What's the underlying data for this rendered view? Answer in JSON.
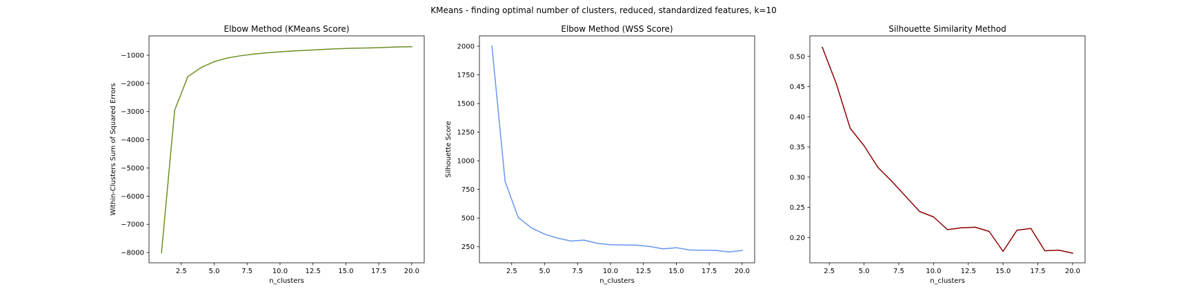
{
  "figure": {
    "suptitle": "KMeans - finding optimal number of clusters, reduced, standardized features, k=10"
  },
  "chart_data": [
    {
      "type": "line",
      "title": "Elbow Method (KMeans Score)",
      "xlabel": "n_clusters",
      "ylabel": "Within-Clusters Sum of Squared Errors",
      "xlim": [
        0.05,
        20.95
      ],
      "ylim": [
        -8365,
        -315
      ],
      "xticks": [
        2.5,
        5.0,
        7.5,
        10.0,
        12.5,
        15.0,
        17.5,
        20.0
      ],
      "xtick_labels": [
        "2.5",
        "5.0",
        "7.5",
        "10.0",
        "12.5",
        "15.0",
        "17.5",
        "20.0"
      ],
      "yticks": [
        -8000,
        -7000,
        -6000,
        -5000,
        -4000,
        -3000,
        -2000,
        -1000
      ],
      "ytick_labels": [
        "−8000",
        "−7000",
        "−6000",
        "−5000",
        "−4000",
        "−3000",
        "−2000",
        "−1000"
      ],
      "color": "#6b8e23",
      "grid": false,
      "x": [
        1,
        2,
        3,
        4,
        5,
        6,
        7,
        8,
        9,
        10,
        11,
        12,
        13,
        14,
        15,
        16,
        17,
        18,
        19,
        20
      ],
      "values": [
        -8000,
        -2950,
        -1760,
        -1440,
        -1230,
        -1100,
        -1020,
        -960,
        -915,
        -880,
        -850,
        -830,
        -800,
        -780,
        -760,
        -750,
        -740,
        -725,
        -705,
        -700
      ]
    },
    {
      "type": "line",
      "title": "Elbow Method (WSS Score)",
      "xlabel": "n_clusters",
      "ylabel": "Silhouette Score",
      "xlim": [
        0.05,
        20.95
      ],
      "ylim": [
        110,
        2090
      ],
      "xticks": [
        2.5,
        5.0,
        7.5,
        10.0,
        12.5,
        15.0,
        17.5,
        20.0
      ],
      "xtick_labels": [
        "2.5",
        "5.0",
        "7.5",
        "10.0",
        "12.5",
        "15.0",
        "17.5",
        "20.0"
      ],
      "yticks": [
        250,
        500,
        750,
        1000,
        1250,
        1500,
        1750,
        2000
      ],
      "ytick_labels": [
        "250",
        "500",
        "750",
        "1000",
        "1250",
        "1500",
        "1750",
        "2000"
      ],
      "color": "#6495ed",
      "grid": false,
      "x": [
        1,
        2,
        3,
        4,
        5,
        6,
        7,
        8,
        9,
        10,
        11,
        12,
        13,
        14,
        15,
        16,
        17,
        18,
        19,
        20
      ],
      "values": [
        2000,
        820,
        505,
        415,
        360,
        325,
        300,
        308,
        280,
        268,
        266,
        264,
        252,
        232,
        242,
        222,
        220,
        218,
        205,
        218
      ]
    },
    {
      "type": "line",
      "title": "Silhouette Similarity Method",
      "xlabel": "n_clusters",
      "ylabel": "",
      "xlim": [
        1.1,
        20.9
      ],
      "ylim": [
        0.158,
        0.534
      ],
      "xticks": [
        2.5,
        5.0,
        7.5,
        10.0,
        12.5,
        15.0,
        17.5,
        20.0
      ],
      "xtick_labels": [
        "2.5",
        "5.0",
        "7.5",
        "10.0",
        "12.5",
        "15.0",
        "17.5",
        "20.0"
      ],
      "yticks": [
        0.2,
        0.25,
        0.3,
        0.35,
        0.4,
        0.45,
        0.5
      ],
      "ytick_labels": [
        "0.20",
        "0.25",
        "0.30",
        "0.35",
        "0.40",
        "0.45",
        "0.50"
      ],
      "color": "#8b0000",
      "grid": false,
      "x": [
        2,
        3,
        4,
        5,
        6,
        7,
        8,
        9,
        10,
        11,
        12,
        13,
        14,
        15,
        16,
        17,
        18,
        19,
        20
      ],
      "values": [
        0.515,
        0.455,
        0.381,
        0.352,
        0.316,
        0.293,
        0.268,
        0.243,
        0.234,
        0.213,
        0.216,
        0.217,
        0.21,
        0.177,
        0.212,
        0.215,
        0.178,
        0.179,
        0.174
      ]
    }
  ]
}
